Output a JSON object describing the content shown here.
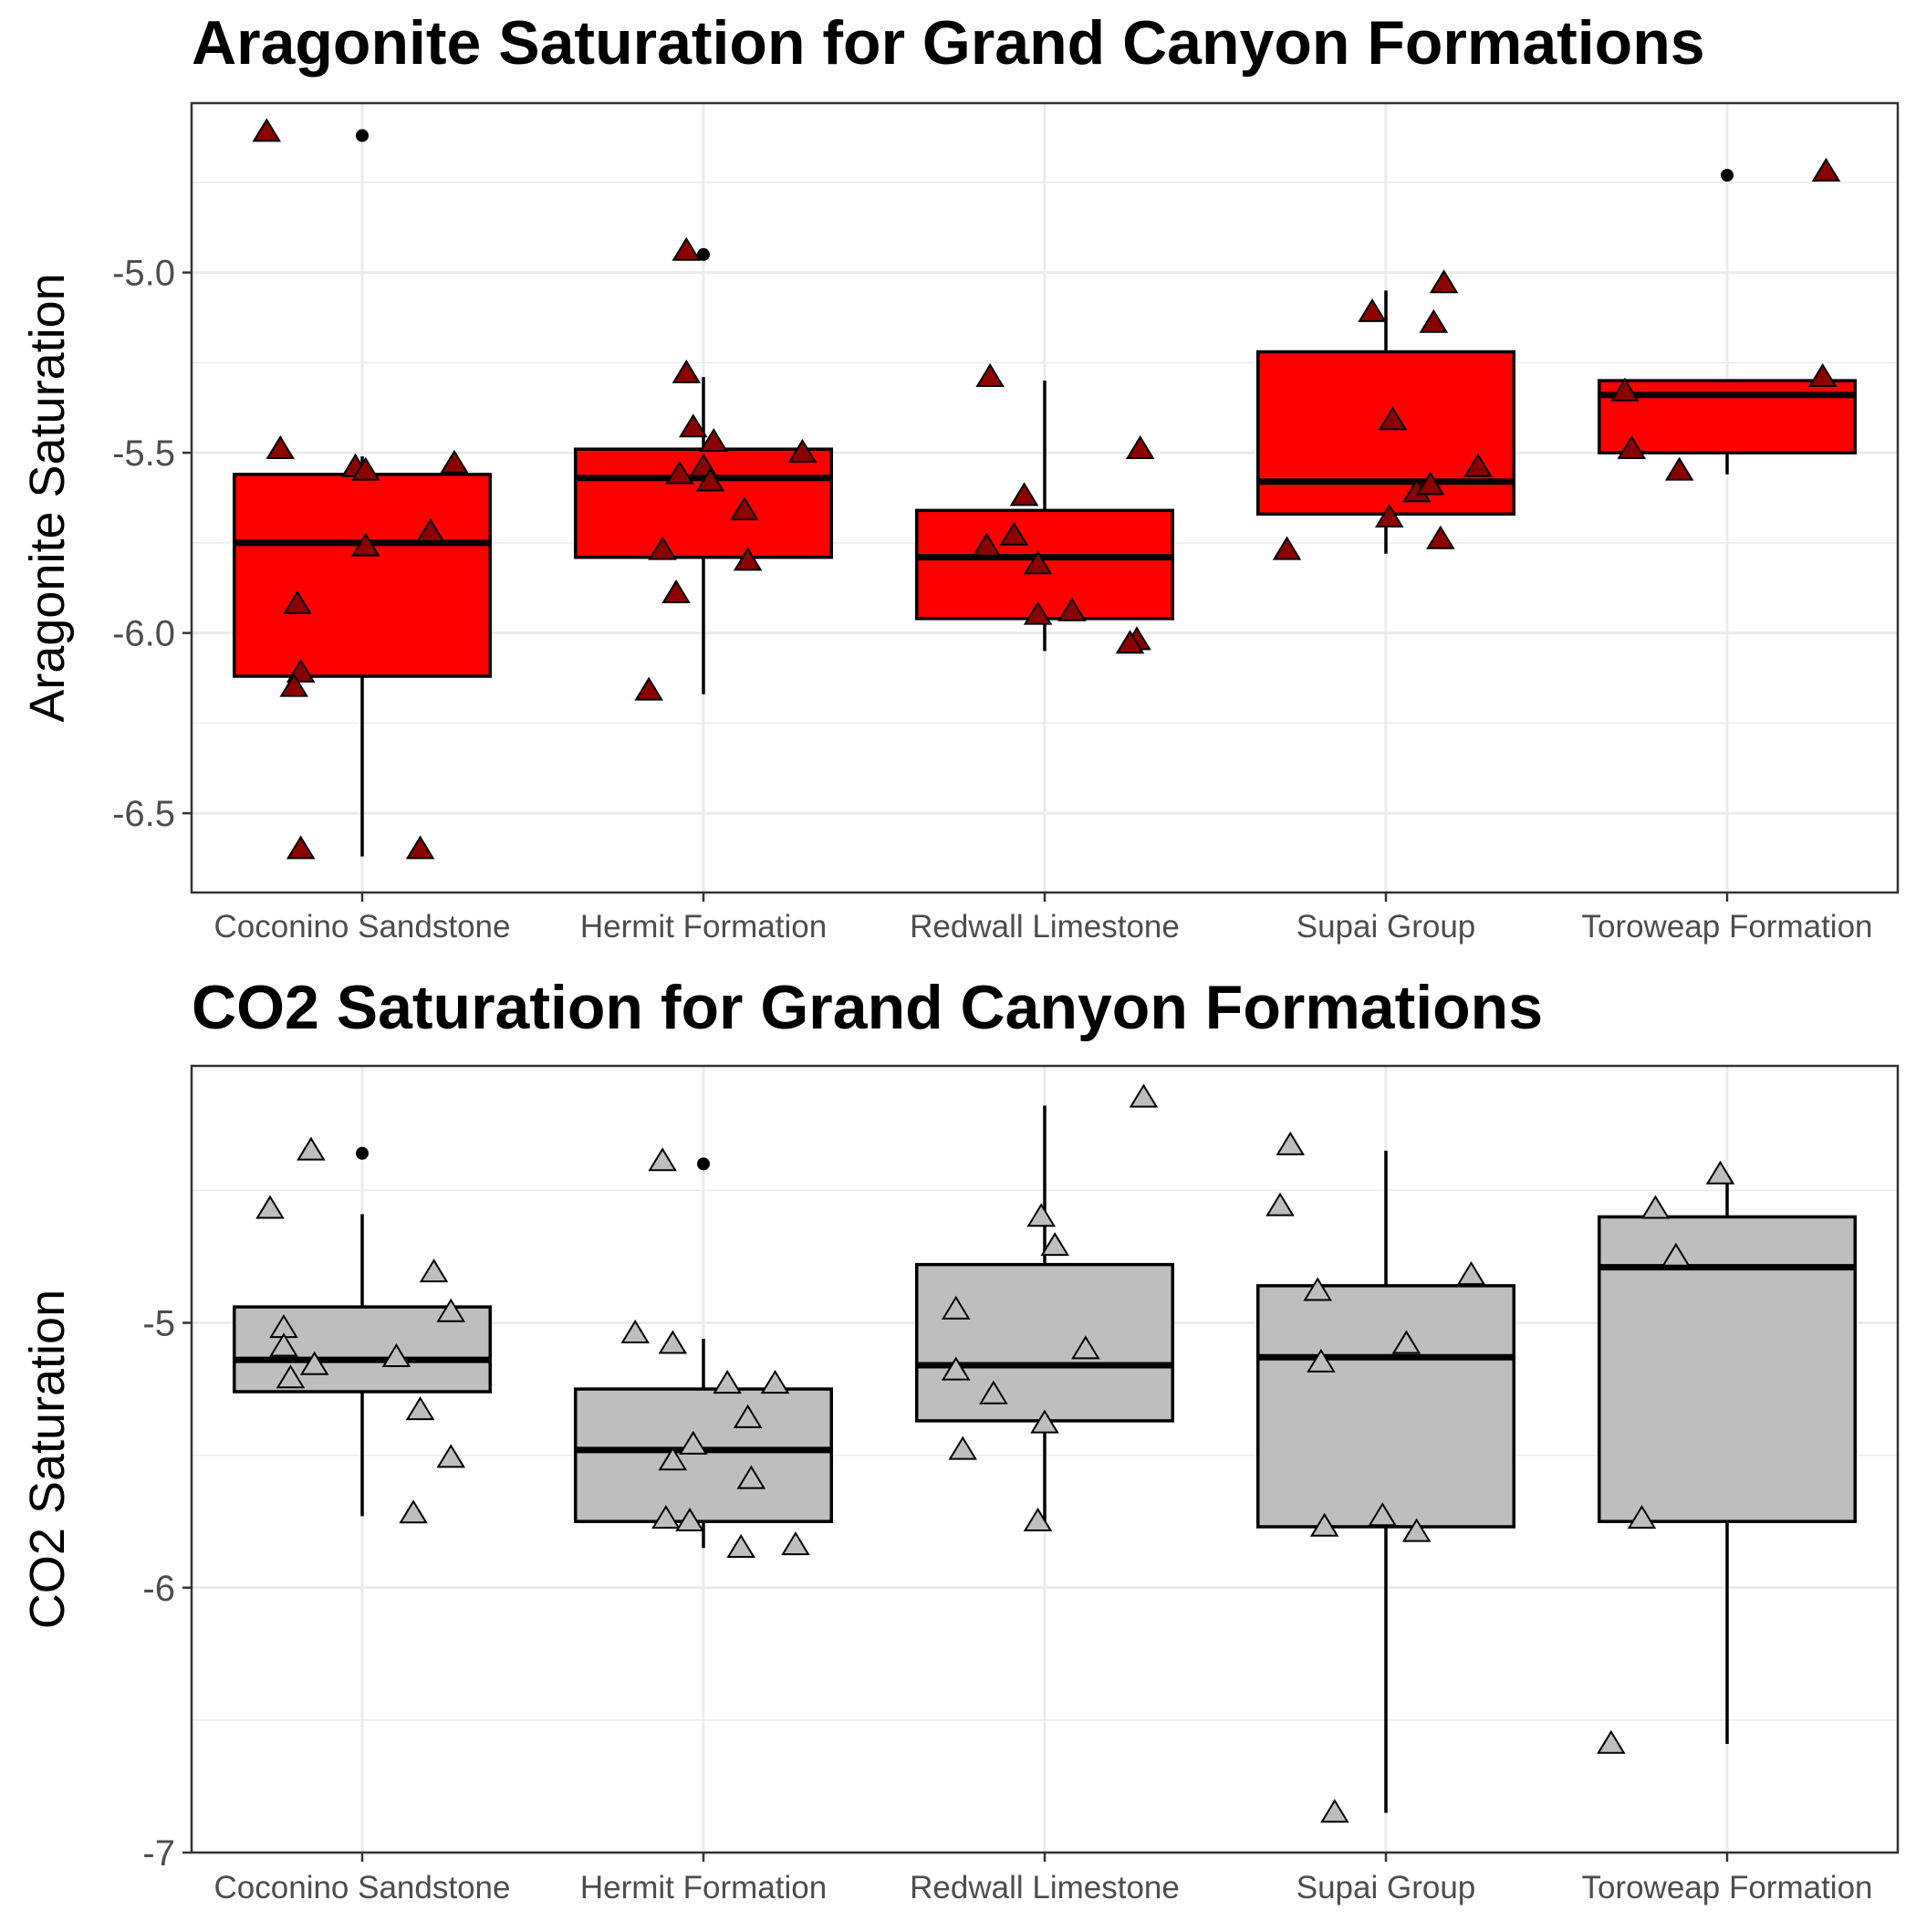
{
  "chart_data": [
    {
      "type": "boxplot",
      "title": "Aragonite Saturation for Grand Canyon Formations",
      "ylabel": "Aragonite Saturation",
      "xlabel": "",
      "categories": [
        "Coconino Sandstone",
        "Hermit Formation",
        "Redwall Limestone",
        "Supai Group",
        "Toroweap Formation"
      ],
      "ylim": [
        -6.72,
        -4.53
      ],
      "yticks": [
        -5.0,
        -5.5,
        -6.0,
        -6.5
      ],
      "ytick_labels": [
        "-5.0",
        "-5.5",
        "-6.0",
        "-6.5"
      ],
      "grid": true,
      "box_fill": "#ff0000",
      "point_fill": "#8b0000",
      "boxes": [
        {
          "category": "Coconino Sandstone",
          "q1": -6.12,
          "median": -5.75,
          "q3": -5.56,
          "whisker_low": -6.62,
          "whisker_high": -5.51,
          "outliers": [
            -4.62
          ]
        },
        {
          "category": "Hermit Formation",
          "q1": -5.79,
          "median": -5.57,
          "q3": -5.49,
          "whisker_low": -6.17,
          "whisker_high": -5.29,
          "outliers": [
            -4.95
          ]
        },
        {
          "category": "Redwall Limestone",
          "q1": -5.96,
          "median": -5.79,
          "q3": -5.66,
          "whisker_low": -6.05,
          "whisker_high": -5.3,
          "outliers": []
        },
        {
          "category": "Supai Group",
          "q1": -5.67,
          "median": -5.58,
          "q3": -5.22,
          "whisker_low": -5.78,
          "whisker_high": -5.05,
          "outliers": []
        },
        {
          "category": "Toroweap Formation",
          "q1": -5.5,
          "median": -5.34,
          "q3": -5.3,
          "whisker_low": -5.56,
          "whisker_high": -5.3,
          "outliers": [
            -4.73
          ]
        }
      ],
      "points": [
        {
          "x": 0.72,
          "y": -4.61
        },
        {
          "x": 0.76,
          "y": -5.49
        },
        {
          "x": 0.81,
          "y": -5.92
        },
        {
          "x": 0.82,
          "y": -6.11
        },
        {
          "x": 0.8,
          "y": -6.15
        },
        {
          "x": 0.82,
          "y": -6.6
        },
        {
          "x": 0.98,
          "y": -5.54
        },
        {
          "x": 1.01,
          "y": -5.55
        },
        {
          "x": 1.01,
          "y": -5.76
        },
        {
          "x": 1.2,
          "y": -5.72
        },
        {
          "x": 1.17,
          "y": -6.6
        },
        {
          "x": 1.27,
          "y": -5.53
        },
        {
          "x": 1.88,
          "y": -5.77
        },
        {
          "x": 1.95,
          "y": -4.94
        },
        {
          "x": 1.95,
          "y": -5.28
        },
        {
          "x": 1.92,
          "y": -5.89
        },
        {
          "x": 1.84,
          "y": -6.16
        },
        {
          "x": 1.93,
          "y": -5.56
        },
        {
          "x": 1.97,
          "y": -5.43
        },
        {
          "x": 2.03,
          "y": -5.47
        },
        {
          "x": 2.0,
          "y": -5.54
        },
        {
          "x": 2.02,
          "y": -5.58
        },
        {
          "x": 2.12,
          "y": -5.66
        },
        {
          "x": 2.13,
          "y": -5.8
        },
        {
          "x": 2.29,
          "y": -5.5
        },
        {
          "x": 2.84,
          "y": -5.29
        },
        {
          "x": 2.94,
          "y": -5.62
        },
        {
          "x": 2.91,
          "y": -5.73
        },
        {
          "x": 2.83,
          "y": -5.76
        },
        {
          "x": 2.98,
          "y": -5.81
        },
        {
          "x": 2.98,
          "y": -5.95
        },
        {
          "x": 3.08,
          "y": -5.94
        },
        {
          "x": 3.28,
          "y": -5.49
        },
        {
          "x": 3.27,
          "y": -6.02
        },
        {
          "x": 3.25,
          "y": -6.03
        },
        {
          "x": 3.71,
          "y": -5.77
        },
        {
          "x": 3.96,
          "y": -5.11
        },
        {
          "x": 4.02,
          "y": -5.41
        },
        {
          "x": 4.01,
          "y": -5.68
        },
        {
          "x": 4.09,
          "y": -5.61
        },
        {
          "x": 4.13,
          "y": -5.59
        },
        {
          "x": 4.14,
          "y": -5.14
        },
        {
          "x": 4.17,
          "y": -5.03
        },
        {
          "x": 4.16,
          "y": -5.74
        },
        {
          "x": 4.27,
          "y": -5.54
        },
        {
          "x": 4.7,
          "y": -5.33
        },
        {
          "x": 4.72,
          "y": -5.49
        },
        {
          "x": 4.86,
          "y": -5.55
        },
        {
          "x": 5.28,
          "y": -5.29
        },
        {
          "x": 5.29,
          "y": -4.72
        }
      ]
    },
    {
      "type": "boxplot",
      "title": "CO2 Saturation for Grand Canyon Formations",
      "ylabel": "CO2 Saturation",
      "xlabel": "",
      "categories": [
        "Coconino Sandstone",
        "Hermit Formation",
        "Redwall Limestone",
        "Supai Group",
        "Toroweap Formation"
      ],
      "ylim": [
        -7.0,
        -4.03
      ],
      "yticks": [
        -5,
        -6,
        -7
      ],
      "ytick_labels": [
        "-5",
        "-6",
        "-7"
      ],
      "grid": true,
      "box_fill": "#bebebe",
      "point_fill": "#bebebe",
      "boxes": [
        {
          "category": "Coconino Sandstone",
          "q1": -5.26,
          "median": -5.14,
          "q3": -4.94,
          "whisker_low": -5.73,
          "whisker_high": -4.59,
          "outliers": [
            -4.36
          ]
        },
        {
          "category": "Hermit Formation",
          "q1": -5.75,
          "median": -5.48,
          "q3": -5.25,
          "whisker_low": -5.85,
          "whisker_high": -5.06,
          "outliers": [
            -4.4
          ]
        },
        {
          "category": "Redwall Limestone",
          "q1": -5.37,
          "median": -5.16,
          "q3": -4.78,
          "whisker_low": -5.75,
          "whisker_high": -4.18,
          "outliers": []
        },
        {
          "category": "Supai Group",
          "q1": -5.77,
          "median": -5.13,
          "q3": -4.86,
          "whisker_low": -6.85,
          "whisker_high": -4.35,
          "outliers": []
        },
        {
          "category": "Toroweap Formation",
          "q1": -5.75,
          "median": -4.79,
          "q3": -4.6,
          "whisker_low": -6.59,
          "whisker_high": -4.46,
          "outliers": []
        }
      ],
      "points": [
        {
          "x": 0.73,
          "y": -4.57
        },
        {
          "x": 0.77,
          "y": -5.02
        },
        {
          "x": 0.77,
          "y": -5.09
        },
        {
          "x": 0.79,
          "y": -5.21
        },
        {
          "x": 0.85,
          "y": -4.35
        },
        {
          "x": 0.86,
          "y": -5.16
        },
        {
          "x": 1.1,
          "y": -5.13
        },
        {
          "x": 1.17,
          "y": -5.33
        },
        {
          "x": 1.15,
          "y": -5.72
        },
        {
          "x": 1.21,
          "y": -4.81
        },
        {
          "x": 1.26,
          "y": -4.96
        },
        {
          "x": 1.26,
          "y": -5.51
        },
        {
          "x": 1.8,
          "y": -5.04
        },
        {
          "x": 1.89,
          "y": -5.74
        },
        {
          "x": 1.91,
          "y": -5.52
        },
        {
          "x": 1.88,
          "y": -4.39
        },
        {
          "x": 1.91,
          "y": -5.08
        },
        {
          "x": 1.97,
          "y": -5.46
        },
        {
          "x": 1.96,
          "y": -5.75
        },
        {
          "x": 2.07,
          "y": -5.23
        },
        {
          "x": 2.11,
          "y": -5.85
        },
        {
          "x": 2.13,
          "y": -5.36
        },
        {
          "x": 2.14,
          "y": -5.59
        },
        {
          "x": 2.21,
          "y": -5.23
        },
        {
          "x": 2.27,
          "y": -5.84
        },
        {
          "x": 2.74,
          "y": -4.95
        },
        {
          "x": 2.74,
          "y": -5.18
        },
        {
          "x": 2.76,
          "y": -5.48
        },
        {
          "x": 2.85,
          "y": -5.27
        },
        {
          "x": 2.99,
          "y": -4.6
        },
        {
          "x": 3.0,
          "y": -5.38
        },
        {
          "x": 2.98,
          "y": -5.75
        },
        {
          "x": 3.03,
          "y": -4.71
        },
        {
          "x": 3.12,
          "y": -5.1
        },
        {
          "x": 3.29,
          "y": -4.15
        },
        {
          "x": 3.69,
          "y": -4.56
        },
        {
          "x": 3.72,
          "y": -4.33
        },
        {
          "x": 3.8,
          "y": -4.88
        },
        {
          "x": 3.81,
          "y": -5.15
        },
        {
          "x": 3.82,
          "y": -5.77
        },
        {
          "x": 3.85,
          "y": -6.85
        },
        {
          "x": 3.99,
          "y": -5.73
        },
        {
          "x": 4.06,
          "y": -5.08
        },
        {
          "x": 4.09,
          "y": -5.79
        },
        {
          "x": 4.25,
          "y": -4.82
        },
        {
          "x": 4.66,
          "y": -6.59
        },
        {
          "x": 4.75,
          "y": -5.74
        },
        {
          "x": 4.79,
          "y": -4.57
        },
        {
          "x": 4.85,
          "y": -4.75
        },
        {
          "x": 4.98,
          "y": -4.44
        }
      ]
    }
  ]
}
